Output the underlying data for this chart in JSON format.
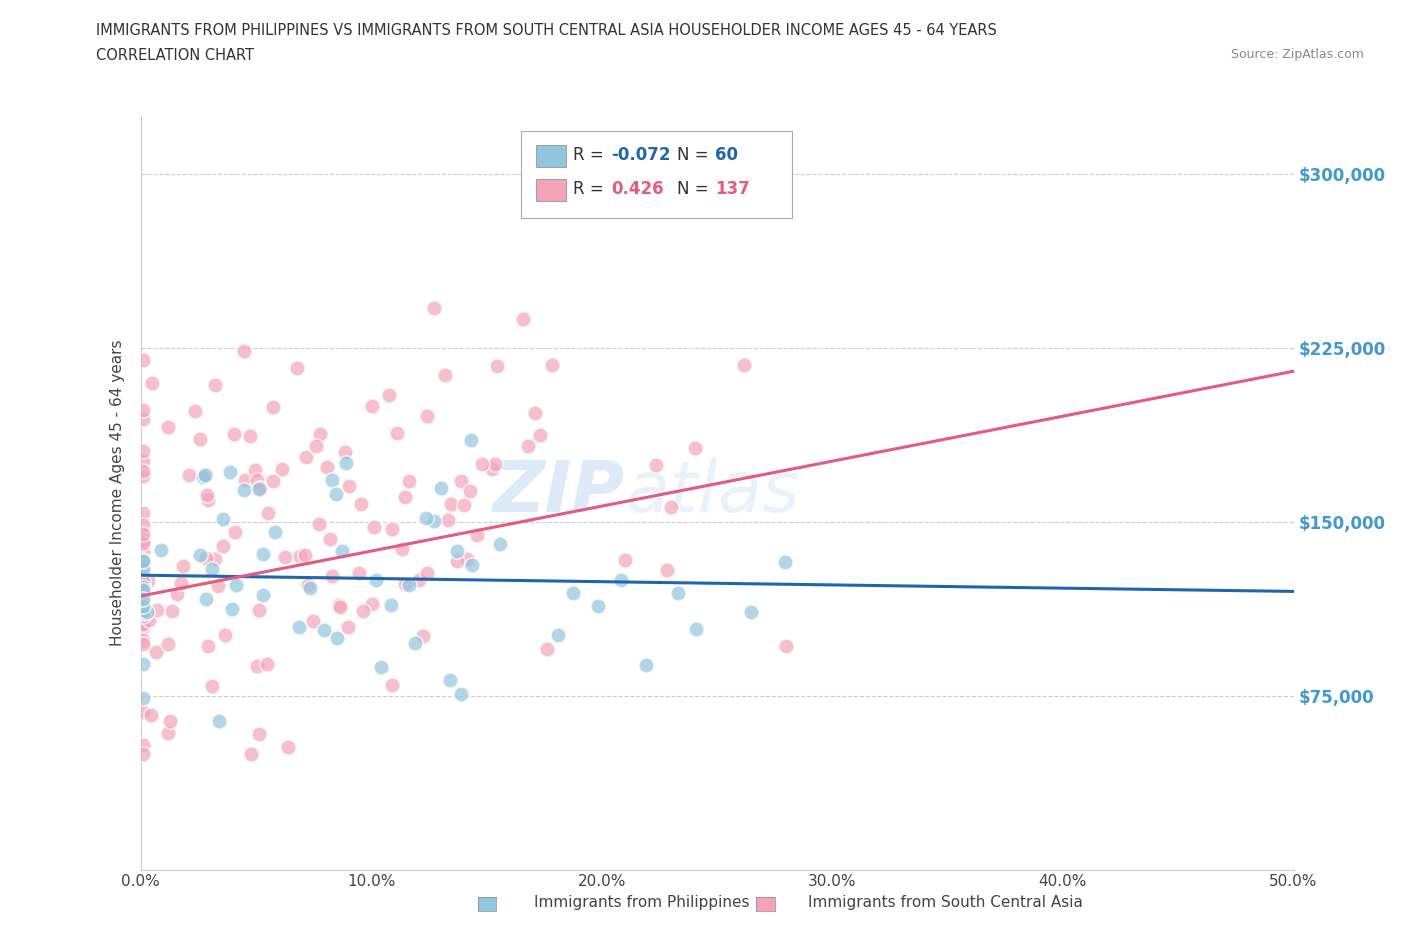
{
  "title_line1": "IMMIGRANTS FROM PHILIPPINES VS IMMIGRANTS FROM SOUTH CENTRAL ASIA HOUSEHOLDER INCOME AGES 45 - 64 YEARS",
  "title_line2": "CORRELATION CHART",
  "source_text": "Source: ZipAtlas.com",
  "ylabel": "Householder Income Ages 45 - 64 years",
  "xlim": [
    0.0,
    0.5
  ],
  "ylim": [
    0,
    325000
  ],
  "xticks": [
    0.0,
    0.1,
    0.2,
    0.3,
    0.4,
    0.5
  ],
  "xticklabels": [
    "0.0%",
    "10.0%",
    "20.0%",
    "30.0%",
    "40.0%",
    "50.0%"
  ],
  "yticks": [
    75000,
    150000,
    225000,
    300000
  ],
  "yticklabels": [
    "$75,000",
    "$150,000",
    "$225,000",
    "$300,000"
  ],
  "color_blue": "#92c5de",
  "color_pink": "#f4a3b8",
  "color_blue_line": "#2166ac",
  "color_pink_line": "#e05c80",
  "color_yaxis": "#4499cc",
  "watermark_text": "ZIP atlas",
  "blue_R": -0.072,
  "blue_N": 60,
  "pink_R": 0.426,
  "pink_N": 137,
  "blue_line_y0": 127000,
  "blue_line_y1": 120000,
  "pink_line_y0": 118000,
  "pink_line_y1": 215000
}
